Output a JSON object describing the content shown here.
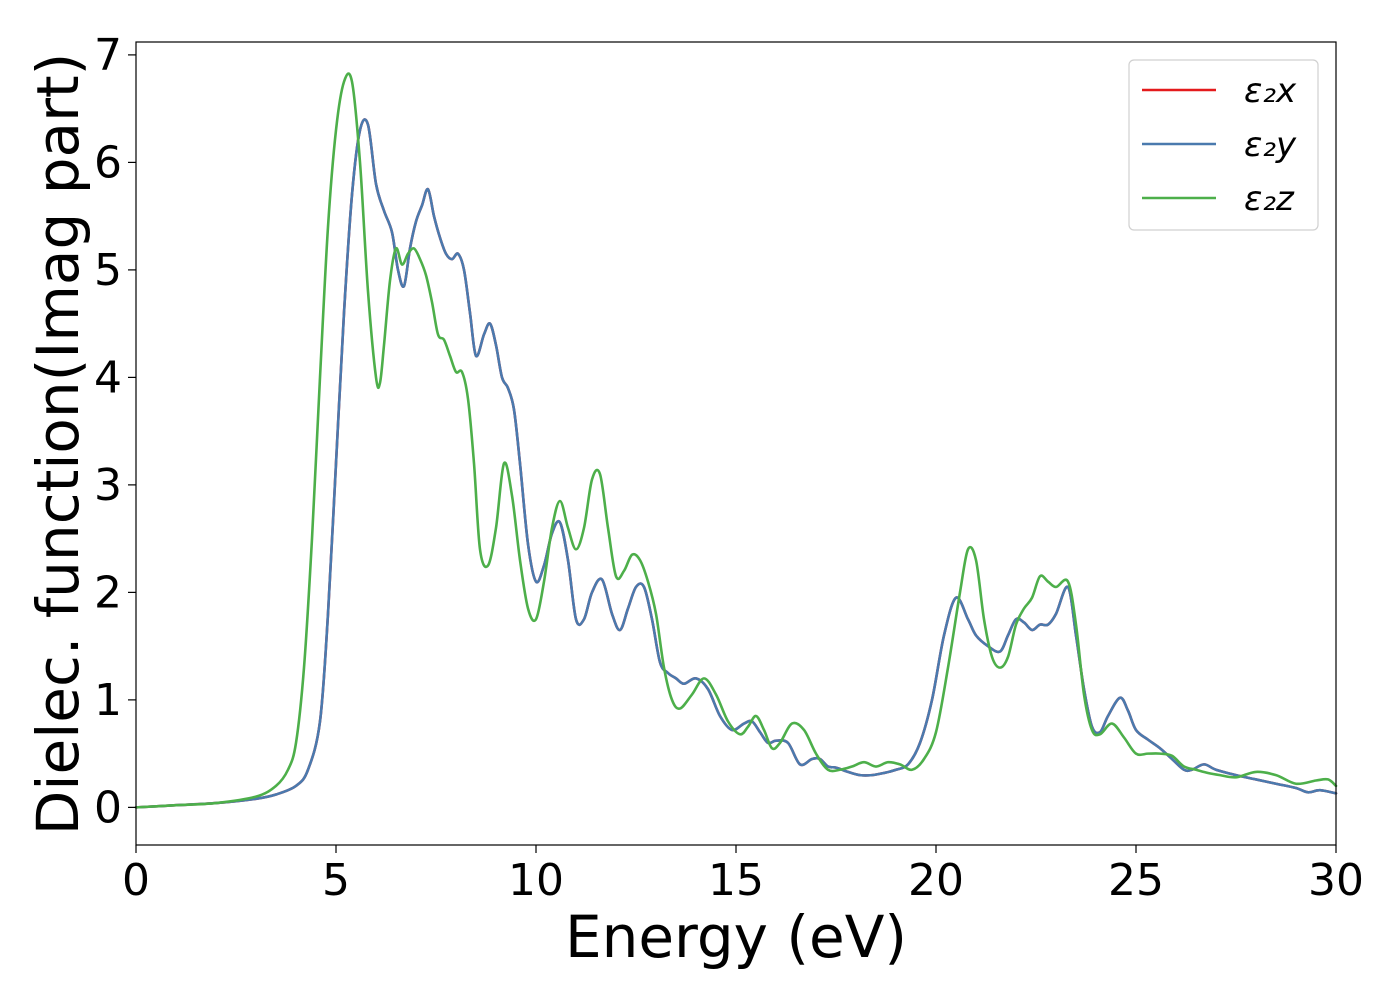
{
  "chart_data": {
    "type": "line",
    "xlabel": "Energy (eV)",
    "ylabel": "Dielec. function(Imag part)",
    "xlim": [
      0,
      30
    ],
    "ylim": [
      -0.35,
      7.12
    ],
    "xticks": [
      0,
      5,
      10,
      15,
      20,
      25,
      30
    ],
    "yticks": [
      0,
      1,
      2,
      3,
      4,
      5,
      6,
      7
    ],
    "xtick_labels": [
      "0",
      "5",
      "10",
      "15",
      "20",
      "25",
      "30"
    ],
    "ytick_labels": [
      "0",
      "1",
      "2",
      "3",
      "4",
      "5",
      "6",
      "7"
    ],
    "grid": false,
    "legend": {
      "placement": "top-right",
      "entries": [
        "ε₂x",
        "ε₂y",
        "ε₂z"
      ]
    },
    "series": [
      {
        "name": "ε₂x",
        "color": "#e41a1c",
        "x": [
          0,
          1,
          2,
          3,
          3.5,
          4,
          4.3,
          4.6,
          4.8,
          5.0,
          5.2,
          5.4,
          5.6,
          5.8,
          6.0,
          6.2,
          6.4,
          6.55,
          6.7,
          6.85,
          7.0,
          7.15,
          7.3,
          7.45,
          7.6,
          7.75,
          7.9,
          8.05,
          8.2,
          8.35,
          8.5,
          8.7,
          8.85,
          9.0,
          9.15,
          9.3,
          9.45,
          9.6,
          9.8,
          10.0,
          10.2,
          10.4,
          10.6,
          10.8,
          11.0,
          11.2,
          11.4,
          11.65,
          11.9,
          12.1,
          12.3,
          12.5,
          12.7,
          12.9,
          13.1,
          13.3,
          13.5,
          13.7,
          14.0,
          14.3,
          14.6,
          14.9,
          15.2,
          15.4,
          15.6,
          15.8,
          16.0,
          16.3,
          16.6,
          16.9,
          17.1,
          17.3,
          17.5,
          17.8,
          18.1,
          18.4,
          18.7,
          19.0,
          19.3,
          19.6,
          19.9,
          20.2,
          20.5,
          20.8,
          21.0,
          21.3,
          21.6,
          21.8,
          22.0,
          22.2,
          22.4,
          22.6,
          22.8,
          23.0,
          23.3,
          23.5,
          23.7,
          23.9,
          24.1,
          24.3,
          24.6,
          24.8,
          25.0,
          25.3,
          25.6,
          25.9,
          26.2,
          26.4,
          26.7,
          27.0,
          27.5,
          28.0,
          28.5,
          29.0,
          29.3,
          29.6,
          30.0
        ],
        "y": [
          0,
          0.02,
          0.04,
          0.08,
          0.12,
          0.2,
          0.35,
          0.8,
          1.8,
          3.2,
          4.6,
          5.7,
          6.3,
          6.35,
          5.8,
          5.55,
          5.35,
          5.0,
          4.85,
          5.2,
          5.45,
          5.6,
          5.75,
          5.5,
          5.3,
          5.15,
          5.1,
          5.15,
          5.0,
          4.6,
          4.2,
          4.4,
          4.5,
          4.3,
          4.0,
          3.9,
          3.7,
          3.2,
          2.45,
          2.1,
          2.25,
          2.55,
          2.65,
          2.3,
          1.75,
          1.75,
          2.0,
          2.12,
          1.8,
          1.65,
          1.85,
          2.05,
          2.05,
          1.75,
          1.35,
          1.25,
          1.2,
          1.15,
          1.2,
          1.1,
          0.85,
          0.72,
          0.78,
          0.8,
          0.7,
          0.6,
          0.62,
          0.6,
          0.4,
          0.45,
          0.45,
          0.38,
          0.37,
          0.33,
          0.3,
          0.3,
          0.32,
          0.35,
          0.4,
          0.6,
          1.0,
          1.6,
          1.95,
          1.75,
          1.6,
          1.5,
          1.45,
          1.6,
          1.75,
          1.72,
          1.65,
          1.7,
          1.7,
          1.8,
          2.05,
          1.6,
          1.1,
          0.75,
          0.7,
          0.85,
          1.02,
          0.9,
          0.72,
          0.63,
          0.55,
          0.45,
          0.35,
          0.35,
          0.4,
          0.35,
          0.3,
          0.26,
          0.22,
          0.18,
          0.14,
          0.16,
          0.13
        ]
      },
      {
        "name": "ε₂y",
        "color": "#4a7aae",
        "x": [
          0,
          1,
          2,
          3,
          3.5,
          4,
          4.3,
          4.6,
          4.8,
          5.0,
          5.2,
          5.4,
          5.6,
          5.8,
          6.0,
          6.2,
          6.4,
          6.55,
          6.7,
          6.85,
          7.0,
          7.15,
          7.3,
          7.45,
          7.6,
          7.75,
          7.9,
          8.05,
          8.2,
          8.35,
          8.5,
          8.7,
          8.85,
          9.0,
          9.15,
          9.3,
          9.45,
          9.6,
          9.8,
          10.0,
          10.2,
          10.4,
          10.6,
          10.8,
          11.0,
          11.2,
          11.4,
          11.65,
          11.9,
          12.1,
          12.3,
          12.5,
          12.7,
          12.9,
          13.1,
          13.3,
          13.5,
          13.7,
          14.0,
          14.3,
          14.6,
          14.9,
          15.2,
          15.4,
          15.6,
          15.8,
          16.0,
          16.3,
          16.6,
          16.9,
          17.1,
          17.3,
          17.5,
          17.8,
          18.1,
          18.4,
          18.7,
          19.0,
          19.3,
          19.6,
          19.9,
          20.2,
          20.5,
          20.8,
          21.0,
          21.3,
          21.6,
          21.8,
          22.0,
          22.2,
          22.4,
          22.6,
          22.8,
          23.0,
          23.3,
          23.5,
          23.7,
          23.9,
          24.1,
          24.3,
          24.6,
          24.8,
          25.0,
          25.3,
          25.6,
          25.9,
          26.2,
          26.4,
          26.7,
          27.0,
          27.5,
          28.0,
          28.5,
          29.0,
          29.3,
          29.6,
          30.0
        ],
        "y": [
          0,
          0.02,
          0.04,
          0.08,
          0.12,
          0.2,
          0.35,
          0.8,
          1.8,
          3.2,
          4.6,
          5.7,
          6.3,
          6.35,
          5.8,
          5.55,
          5.35,
          5.0,
          4.85,
          5.2,
          5.45,
          5.6,
          5.75,
          5.5,
          5.3,
          5.15,
          5.1,
          5.15,
          5.0,
          4.6,
          4.2,
          4.4,
          4.5,
          4.3,
          4.0,
          3.9,
          3.7,
          3.2,
          2.45,
          2.1,
          2.25,
          2.55,
          2.65,
          2.3,
          1.75,
          1.75,
          2.0,
          2.12,
          1.8,
          1.65,
          1.85,
          2.05,
          2.05,
          1.75,
          1.35,
          1.25,
          1.2,
          1.15,
          1.2,
          1.1,
          0.85,
          0.72,
          0.78,
          0.8,
          0.7,
          0.6,
          0.62,
          0.6,
          0.4,
          0.45,
          0.45,
          0.38,
          0.37,
          0.33,
          0.3,
          0.3,
          0.32,
          0.35,
          0.4,
          0.6,
          1.0,
          1.6,
          1.95,
          1.75,
          1.6,
          1.5,
          1.45,
          1.6,
          1.75,
          1.72,
          1.65,
          1.7,
          1.7,
          1.8,
          2.05,
          1.6,
          1.1,
          0.75,
          0.7,
          0.85,
          1.02,
          0.9,
          0.72,
          0.63,
          0.55,
          0.45,
          0.35,
          0.35,
          0.4,
          0.35,
          0.3,
          0.26,
          0.22,
          0.18,
          0.14,
          0.16,
          0.13
        ]
      },
      {
        "name": "ε₂z",
        "color": "#4daf4a",
        "x": [
          0,
          1,
          2,
          3,
          3.5,
          3.8,
          4.0,
          4.2,
          4.4,
          4.6,
          4.8,
          5.0,
          5.2,
          5.4,
          5.6,
          5.8,
          6.0,
          6.1,
          6.2,
          6.35,
          6.5,
          6.65,
          6.8,
          6.95,
          7.1,
          7.25,
          7.4,
          7.55,
          7.7,
          7.85,
          8.0,
          8.15,
          8.3,
          8.45,
          8.6,
          8.8,
          9.0,
          9.2,
          9.4,
          9.6,
          9.8,
          10.0,
          10.2,
          10.4,
          10.6,
          10.8,
          11.0,
          11.2,
          11.4,
          11.6,
          11.8,
          12.0,
          12.2,
          12.4,
          12.6,
          12.8,
          13.0,
          13.2,
          13.4,
          13.6,
          13.9,
          14.2,
          14.5,
          14.8,
          15.1,
          15.3,
          15.5,
          15.7,
          15.9,
          16.1,
          16.4,
          16.7,
          17.0,
          17.3,
          17.6,
          17.9,
          18.2,
          18.5,
          18.8,
          19.1,
          19.4,
          19.7,
          20.0,
          20.3,
          20.6,
          20.8,
          21.0,
          21.2,
          21.4,
          21.6,
          21.8,
          22.0,
          22.2,
          22.4,
          22.6,
          22.8,
          23.0,
          23.3,
          23.5,
          23.7,
          23.9,
          24.1,
          24.4,
          24.7,
          25.0,
          25.3,
          25.6,
          25.9,
          26.2,
          26.5,
          26.8,
          27.1,
          27.5,
          28.0,
          28.5,
          29.0,
          29.5,
          29.8,
          30.0
        ],
        "y": [
          0,
          0.02,
          0.04,
          0.1,
          0.2,
          0.35,
          0.6,
          1.3,
          2.5,
          4.0,
          5.4,
          6.3,
          6.75,
          6.75,
          6.0,
          4.8,
          4.0,
          3.95,
          4.3,
          4.9,
          5.2,
          5.05,
          5.15,
          5.2,
          5.1,
          4.95,
          4.7,
          4.4,
          4.35,
          4.2,
          4.05,
          4.05,
          3.8,
          3.2,
          2.4,
          2.25,
          2.6,
          3.2,
          2.9,
          2.3,
          1.85,
          1.75,
          2.1,
          2.6,
          2.85,
          2.6,
          2.4,
          2.6,
          3.05,
          3.1,
          2.6,
          2.15,
          2.2,
          2.35,
          2.3,
          2.1,
          1.8,
          1.3,
          1.0,
          0.92,
          1.05,
          1.2,
          1.05,
          0.8,
          0.68,
          0.75,
          0.85,
          0.72,
          0.55,
          0.6,
          0.78,
          0.72,
          0.5,
          0.35,
          0.35,
          0.38,
          0.42,
          0.38,
          0.42,
          0.4,
          0.35,
          0.45,
          0.7,
          1.3,
          2.0,
          2.4,
          2.3,
          1.75,
          1.4,
          1.3,
          1.4,
          1.7,
          1.85,
          1.95,
          2.15,
          2.1,
          2.05,
          2.1,
          1.7,
          1.05,
          0.72,
          0.68,
          0.78,
          0.65,
          0.5,
          0.5,
          0.5,
          0.48,
          0.38,
          0.35,
          0.32,
          0.3,
          0.28,
          0.33,
          0.3,
          0.22,
          0.25,
          0.26,
          0.2
        ]
      }
    ]
  }
}
